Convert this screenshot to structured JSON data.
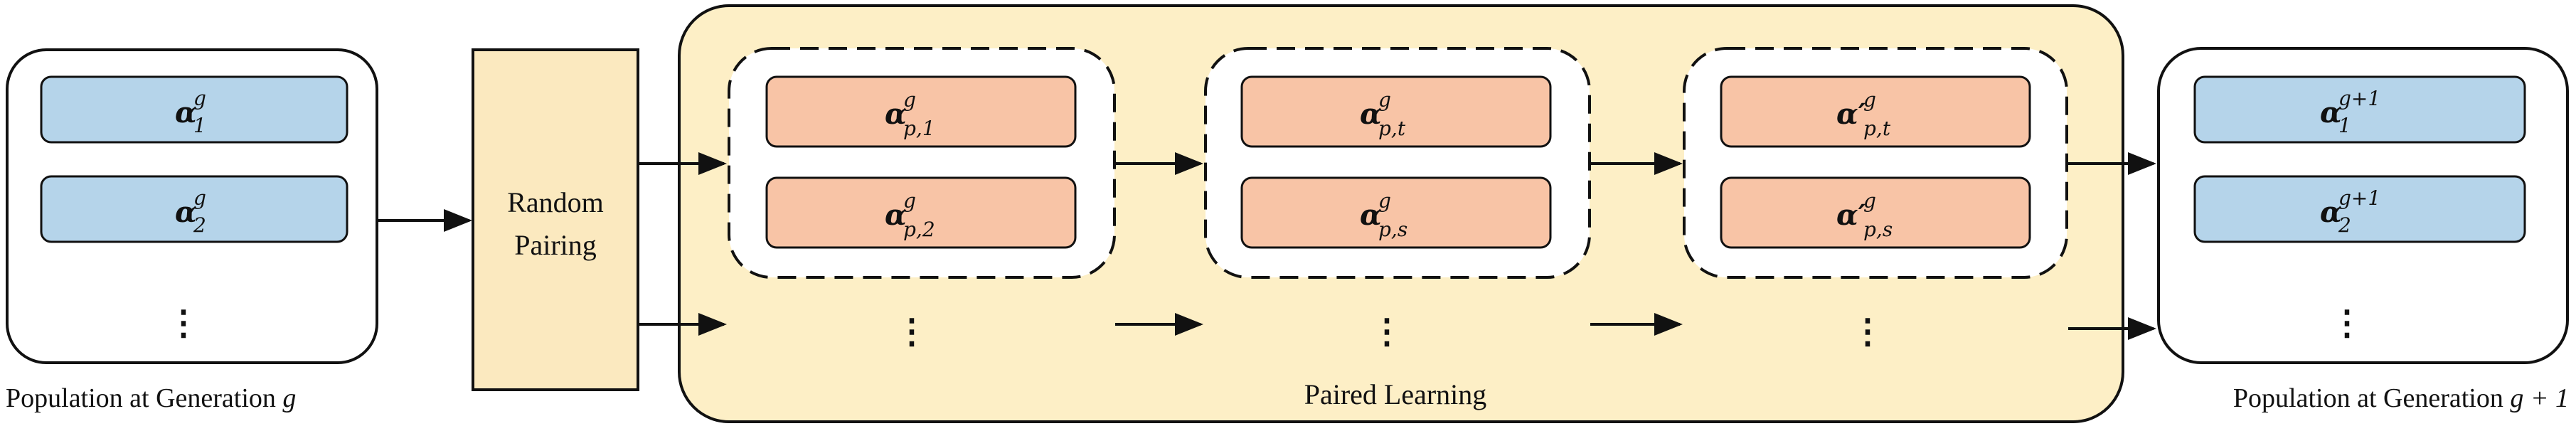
{
  "colors": {
    "individual_fill": "#b5d4ea",
    "paired_fill": "#f8c4a6",
    "pairing_fill": "#fbe9bf",
    "learning_bg": "#fdefc6",
    "stroke": "#111111"
  },
  "population_left": {
    "caption_text": "Population at Generation ",
    "caption_var": "g",
    "items": [
      {
        "base": "α",
        "sup": "g",
        "sub": "1"
      },
      {
        "base": "α",
        "sup": "g",
        "sub": "2"
      }
    ],
    "ellipsis": "⋮"
  },
  "random_pairing": {
    "line1": "Random",
    "line2": "Pairing"
  },
  "paired_learning": {
    "label": "Paired Learning",
    "stages": [
      {
        "items": [
          {
            "base": "α",
            "sup": "g",
            "sub": "p,1"
          },
          {
            "base": "α",
            "sup": "g",
            "sub": "p,2"
          }
        ],
        "ellipsis": "⋮"
      },
      {
        "items": [
          {
            "base": "α",
            "sup": "g",
            "sub": "p,t"
          },
          {
            "base": "α",
            "sup": "g",
            "sub": "p,s"
          }
        ],
        "ellipsis": "⋮"
      },
      {
        "items": [
          {
            "base": "α′",
            "sup": "g",
            "sub": "p,t"
          },
          {
            "base": "α′",
            "sup": "g",
            "sub": "p,s"
          }
        ],
        "ellipsis": "⋮"
      }
    ]
  },
  "population_right": {
    "caption_text": "Population at Generation ",
    "caption_var": "g + 1",
    "items": [
      {
        "base": "α",
        "sup": "g+1",
        "sub": "1"
      },
      {
        "base": "α",
        "sup": "g+1",
        "sub": "2"
      }
    ],
    "ellipsis": "⋮"
  }
}
